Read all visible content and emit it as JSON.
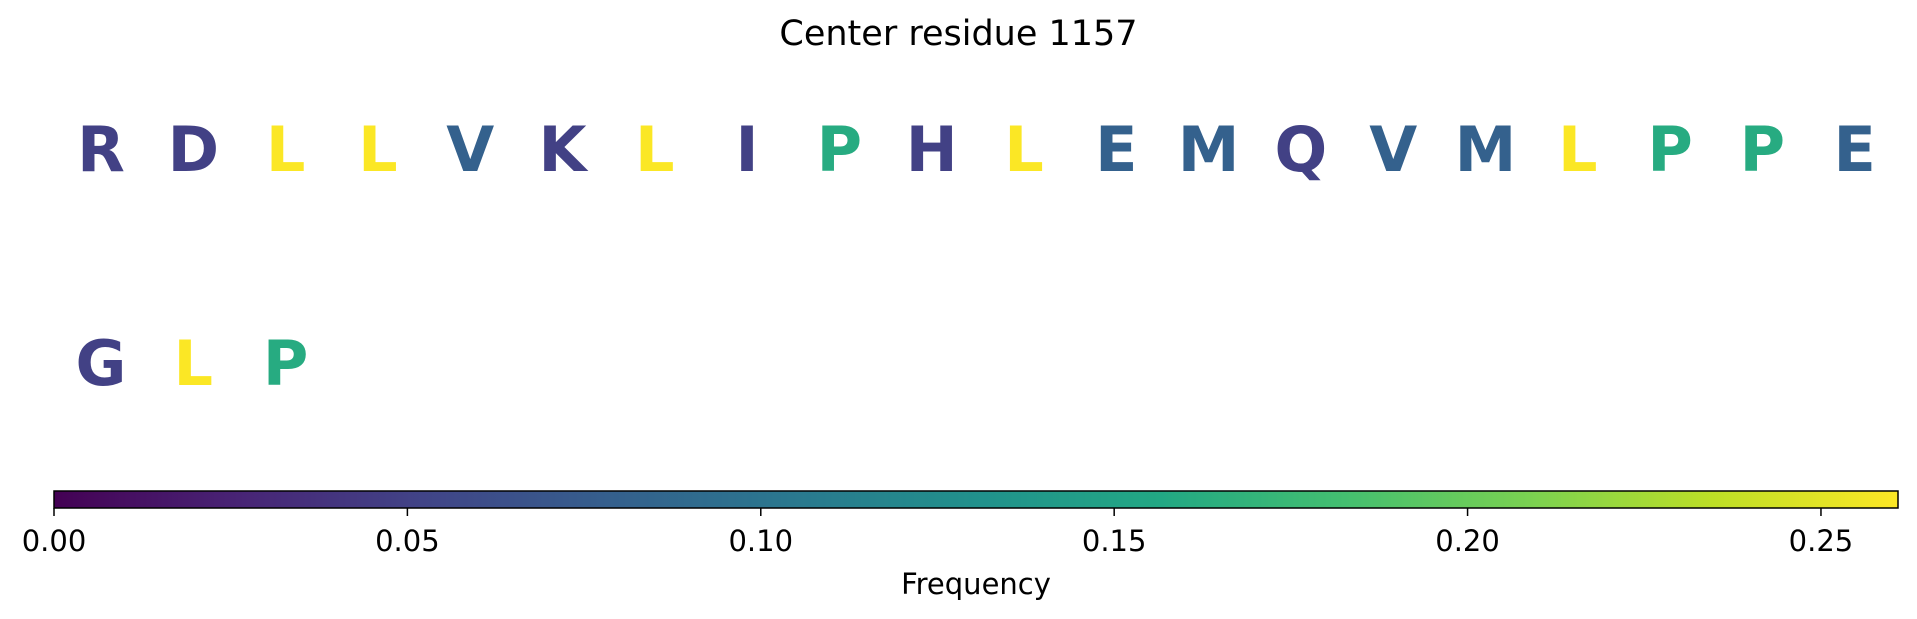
{
  "chart_data": {
    "type": "sequence-colormap",
    "title": "Center residue 1157",
    "colormap": "viridis",
    "residues": [
      {
        "letter": "R",
        "value": 0.05
      },
      {
        "letter": "D",
        "value": 0.05
      },
      {
        "letter": "L",
        "value": 0.26
      },
      {
        "letter": "L",
        "value": 0.26
      },
      {
        "letter": "V",
        "value": 0.08
      },
      {
        "letter": "K",
        "value": 0.05
      },
      {
        "letter": "L",
        "value": 0.26
      },
      {
        "letter": "I",
        "value": 0.05
      },
      {
        "letter": "P",
        "value": 0.16
      },
      {
        "letter": "H",
        "value": 0.05
      },
      {
        "letter": "L",
        "value": 0.26
      },
      {
        "letter": "E",
        "value": 0.08
      },
      {
        "letter": "M",
        "value": 0.08
      },
      {
        "letter": "Q",
        "value": 0.05
      },
      {
        "letter": "V",
        "value": 0.08
      },
      {
        "letter": "M",
        "value": 0.08
      },
      {
        "letter": "L",
        "value": 0.26
      },
      {
        "letter": "P",
        "value": 0.16
      },
      {
        "letter": "P",
        "value": 0.16
      },
      {
        "letter": "E",
        "value": 0.08
      },
      {
        "letter": "G",
        "value": 0.05
      },
      {
        "letter": "L",
        "value": 0.26
      },
      {
        "letter": "P",
        "value": 0.16
      }
    ],
    "colorbar": {
      "label": "Frequency",
      "range": [
        0.0,
        0.2609
      ],
      "ticks": [
        0.0,
        0.05,
        0.1,
        0.15,
        0.2,
        0.25
      ],
      "tick_labels": [
        "0.00",
        "0.05",
        "0.10",
        "0.15",
        "0.20",
        "0.25"
      ],
      "orientation": "horizontal"
    }
  }
}
